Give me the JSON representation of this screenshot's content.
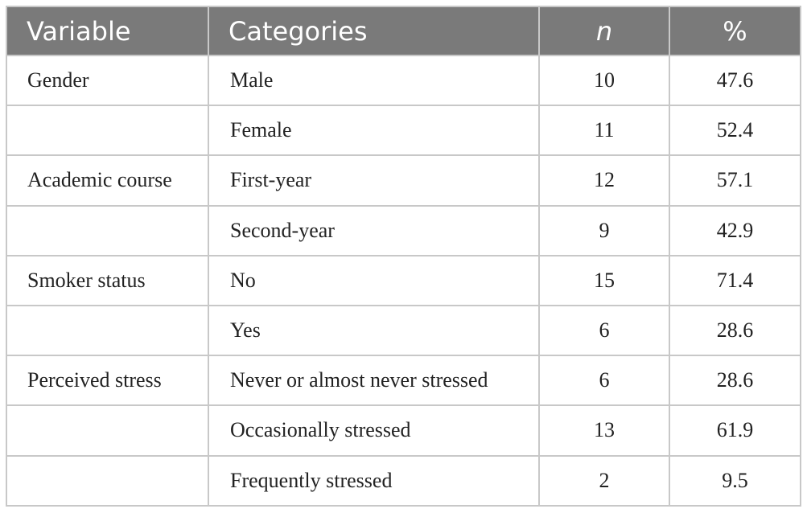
{
  "table": {
    "headers": [
      "Variable",
      "Categories",
      "n",
      "%"
    ],
    "rows": [
      {
        "variable": "Gender",
        "category": "Male",
        "n": "10",
        "pct": "47.6"
      },
      {
        "variable": "",
        "category": "Female",
        "n": "11",
        "pct": "52.4"
      },
      {
        "variable": "Academic course",
        "category": "First-year",
        "n": "12",
        "pct": "57.1"
      },
      {
        "variable": "",
        "category": "Second-year",
        "n": "9",
        "pct": "42.9"
      },
      {
        "variable": "Smoker status",
        "category": "No",
        "n": "15",
        "pct": "71.4"
      },
      {
        "variable": "",
        "category": "Yes",
        "n": "6",
        "pct": "28.6"
      },
      {
        "variable": "Perceived stress",
        "category": "Never or almost never stressed",
        "n": "6",
        "pct": "28.6"
      },
      {
        "variable": "",
        "category": "Occasionally stressed",
        "n": "13",
        "pct": "61.9"
      },
      {
        "variable": "",
        "category": "Frequently stressed",
        "n": "2",
        "pct": "9.5"
      }
    ]
  },
  "colors": {
    "header_bg": "#7a7a7a",
    "header_text": "#ffffff",
    "border": "#c8c8c8"
  }
}
